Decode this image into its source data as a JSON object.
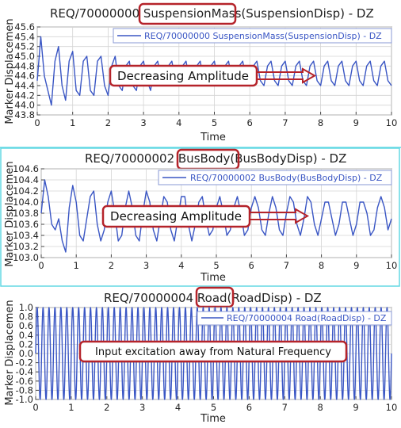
{
  "charts": [
    {
      "title_parts": [
        "REQ/70000000 ",
        "SuspensionMass",
        "(SuspensionDisp) - DZ"
      ],
      "legend": "REQ/70000000 SuspensionMass(SuspensionDisp) - DZ",
      "annotation": "Decreasing Amplitude"
    },
    {
      "title_parts": [
        "REQ/70000002 ",
        "BusBody",
        "(BusBodyDisp) - DZ"
      ],
      "legend": "REQ/70000002 BusBody(BusBodyDisp) - DZ",
      "annotation": "Decreasing Amplitude"
    },
    {
      "title_parts": [
        "REQ/70000004 ",
        "Road",
        "(RoadDisp) - DZ"
      ],
      "legend": "REQ/70000004 Road(RoadDisp) - DZ",
      "annotation": "Input excitation away from Natural Frequency"
    }
  ],
  "colors": {
    "series": "#3a56c4",
    "callout": "#b5232a",
    "grid": "#d4d4d4"
  },
  "chart_data": [
    {
      "type": "line",
      "title": "REQ/70000000 SuspensionMass(SuspensionDisp) - DZ",
      "xlabel": "Time",
      "ylabel": "Marker Displacemen",
      "xlim": [
        0,
        10
      ],
      "ylim": [
        43.8,
        45.6
      ],
      "xticks": [
        "0",
        "1",
        "2",
        "3",
        "4",
        "5",
        "6",
        "7",
        "8",
        "9",
        "10"
      ],
      "yticks": [
        "43.8",
        "44.0",
        "44.2",
        "44.4",
        "44.6",
        "44.8",
        "45.0",
        "45.2",
        "45.4",
        "45.6"
      ],
      "grid": true,
      "legend_position": "top-right",
      "series": [
        {
          "name": "REQ/70000000 SuspensionMass(SuspensionDisp) - DZ",
          "x": [
            0,
            0.1,
            0.2,
            0.3,
            0.4,
            0.5,
            0.6,
            0.7,
            0.8,
            0.9,
            1,
            1.1,
            1.2,
            1.3,
            1.4,
            1.5,
            1.6,
            1.7,
            1.8,
            1.9,
            2,
            2.1,
            2.2,
            2.3,
            2.4,
            2.5,
            2.6,
            2.7,
            2.8,
            2.9,
            3,
            3.1,
            3.2,
            3.3,
            3.4,
            3.5,
            3.6,
            3.7,
            3.8,
            3.9,
            4,
            4.1,
            4.2,
            4.3,
            4.4,
            4.5,
            4.6,
            4.7,
            4.8,
            4.9,
            5,
            5.1,
            5.2,
            5.3,
            5.4,
            5.5,
            5.6,
            5.7,
            5.8,
            5.9,
            6,
            6.1,
            6.2,
            6.3,
            6.4,
            6.5,
            6.6,
            6.7,
            6.8,
            6.9,
            7,
            7.1,
            7.2,
            7.3,
            7.4,
            7.5,
            7.6,
            7.7,
            7.8,
            7.9,
            8,
            8.1,
            8.2,
            8.3,
            8.4,
            8.5,
            8.6,
            8.7,
            8.8,
            8.9,
            9,
            9.1,
            9.2,
            9.3,
            9.4,
            9.5,
            9.6,
            9.7,
            9.8,
            9.9,
            10
          ],
          "values": [
            44.5,
            45.4,
            44.6,
            44.3,
            44.0,
            44.9,
            45.2,
            44.4,
            44.1,
            44.9,
            45.1,
            44.3,
            44.2,
            44.9,
            45.0,
            44.3,
            44.2,
            44.9,
            45.0,
            44.4,
            44.2,
            44.8,
            45.0,
            44.4,
            44.3,
            44.8,
            44.9,
            44.4,
            44.3,
            44.8,
            44.9,
            44.5,
            44.3,
            44.8,
            44.9,
            44.5,
            44.4,
            44.8,
            44.9,
            44.5,
            44.4,
            44.8,
            44.9,
            44.5,
            44.4,
            44.8,
            44.9,
            44.5,
            44.4,
            44.8,
            44.9,
            44.5,
            44.4,
            44.8,
            44.9,
            44.5,
            44.4,
            44.8,
            44.9,
            44.5,
            44.4,
            44.8,
            44.9,
            44.5,
            44.4,
            44.8,
            44.9,
            44.5,
            44.4,
            44.8,
            44.9,
            44.5,
            44.4,
            44.8,
            44.9,
            44.5,
            44.4,
            44.8,
            44.9,
            44.5,
            44.4,
            44.8,
            44.9,
            44.5,
            44.4,
            44.8,
            44.9,
            44.5,
            44.4,
            44.8,
            44.9,
            44.5,
            44.4,
            44.8,
            44.9,
            44.5,
            44.4,
            44.8,
            44.9,
            44.5,
            44.4
          ]
        }
      ]
    },
    {
      "type": "line",
      "title": "REQ/70000002 BusBody(BusBodyDisp) - DZ",
      "xlabel": "Time",
      "ylabel": "Marker Displacemen",
      "xlim": [
        0,
        10
      ],
      "ylim": [
        103.0,
        104.6
      ],
      "xticks": [
        "0",
        "1",
        "2",
        "3",
        "4",
        "5",
        "6",
        "7",
        "8",
        "9",
        "10"
      ],
      "yticks": [
        "103.0",
        "103.2",
        "103.4",
        "103.6",
        "103.8",
        "104.0",
        "104.2",
        "104.4",
        "104.6"
      ],
      "grid": true,
      "legend_position": "top-right",
      "series": [
        {
          "name": "REQ/70000002 BusBody(BusBodyDisp) - DZ",
          "x": [
            0,
            0.1,
            0.2,
            0.3,
            0.4,
            0.5,
            0.6,
            0.7,
            0.8,
            0.9,
            1,
            1.1,
            1.2,
            1.3,
            1.4,
            1.5,
            1.6,
            1.7,
            1.8,
            1.9,
            2,
            2.1,
            2.2,
            2.3,
            2.4,
            2.5,
            2.6,
            2.7,
            2.8,
            2.9,
            3,
            3.1,
            3.2,
            3.3,
            3.4,
            3.5,
            3.6,
            3.7,
            3.8,
            3.9,
            4,
            4.1,
            4.2,
            4.3,
            4.4,
            4.5,
            4.6,
            4.7,
            4.8,
            4.9,
            5,
            5.1,
            5.2,
            5.3,
            5.4,
            5.5,
            5.6,
            5.7,
            5.8,
            5.9,
            6,
            6.1,
            6.2,
            6.3,
            6.4,
            6.5,
            6.6,
            6.7,
            6.8,
            6.9,
            7,
            7.1,
            7.2,
            7.3,
            7.4,
            7.5,
            7.6,
            7.7,
            7.8,
            7.9,
            8,
            8.1,
            8.2,
            8.3,
            8.4,
            8.5,
            8.6,
            8.7,
            8.8,
            8.9,
            9,
            9.1,
            9.2,
            9.3,
            9.4,
            9.5,
            9.6,
            9.7,
            9.8,
            9.9,
            10
          ],
          "values": [
            103.8,
            104.4,
            104.1,
            103.6,
            103.5,
            103.7,
            103.3,
            103.1,
            103.9,
            104.3,
            104.0,
            103.4,
            103.3,
            103.7,
            104.1,
            104.2,
            103.6,
            103.3,
            103.5,
            104.0,
            104.2,
            103.8,
            103.3,
            103.4,
            103.9,
            104.2,
            103.9,
            103.4,
            103.3,
            103.8,
            104.2,
            104.0,
            103.5,
            103.3,
            103.7,
            104.1,
            104.0,
            103.5,
            103.3,
            103.7,
            104.1,
            104.1,
            103.6,
            103.3,
            103.6,
            104.0,
            104.1,
            103.7,
            103.4,
            103.5,
            103.9,
            104.1,
            103.8,
            103.4,
            103.5,
            103.9,
            104.1,
            103.8,
            103.4,
            103.5,
            103.9,
            104.1,
            103.9,
            103.5,
            103.4,
            103.8,
            104.1,
            103.9,
            103.5,
            103.4,
            103.8,
            104.1,
            104.0,
            103.6,
            103.4,
            103.7,
            104.1,
            104.0,
            103.6,
            103.4,
            103.7,
            104.0,
            104.0,
            103.7,
            103.4,
            103.6,
            104.0,
            104.0,
            103.7,
            103.4,
            103.6,
            104.0,
            104.0,
            103.8,
            103.4,
            103.5,
            103.9,
            104.1,
            103.9,
            103.5,
            103.7
          ]
        }
      ]
    },
    {
      "type": "line",
      "title": "REQ/70000004 Road(RoadDisp) - DZ",
      "xlabel": "Time",
      "ylabel": "Marker Displacemen",
      "xlim": [
        0,
        10
      ],
      "ylim": [
        -1.0,
        1.0
      ],
      "xticks": [
        "0",
        "1",
        "2",
        "3",
        "4",
        "5",
        "6",
        "7",
        "8",
        "9",
        "10"
      ],
      "yticks": [
        "-1.0",
        "-0.8",
        "-0.6",
        "-0.4",
        "-0.2",
        "0.0",
        "0.2",
        "0.4",
        "0.6",
        "0.8",
        "1.0"
      ],
      "grid": true,
      "legend_position": "top-right",
      "series": [
        {
          "name": "REQ/70000004 Road(RoadDisp) - DZ",
          "amplitude": 1.0,
          "frequency_hz": 6.0
        }
      ]
    }
  ]
}
